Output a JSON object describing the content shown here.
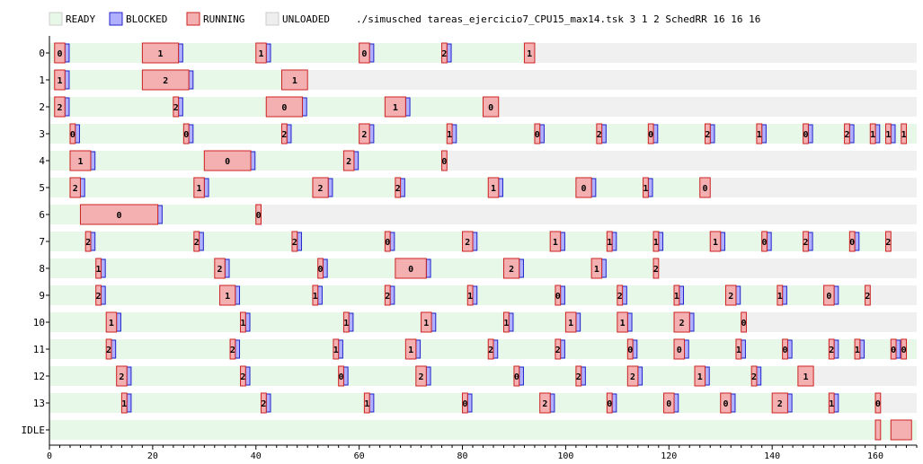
{
  "chart_data": {
    "type": "gantt",
    "title": "./simusched tareas_ejercicio7_CPU15_max14.tsk 3 1 2 SchedRR 16 16 16",
    "legend": [
      {
        "name": "READY",
        "color": "#e8f8e8"
      },
      {
        "name": "BLOCKED",
        "color": "#b0b0ff"
      },
      {
        "name": "RUNNING",
        "color": "#f4b0b0"
      },
      {
        "name": "UNLOADED",
        "color": "#eeeeee"
      }
    ],
    "colors": {
      "ready": "#e8f8e8",
      "ready_border": "#ffffff",
      "blocked": "#b0b0ff",
      "blocked_border": "#2222cc",
      "running": "#f4b0b0",
      "running_border": "#cc2222",
      "unloaded": "#f0f0f0"
    },
    "xlim": [
      0,
      168
    ],
    "x_ticks": [
      0,
      20,
      40,
      60,
      80,
      100,
      120,
      140,
      160
    ],
    "rows": [
      {
        "label": "0",
        "end": 168,
        "runs": [
          [
            1,
            3,
            "0"
          ],
          [
            18,
            25,
            "1"
          ],
          [
            40,
            42,
            "1"
          ],
          [
            60,
            62,
            "0"
          ],
          [
            76,
            77,
            "2"
          ],
          [
            92,
            94,
            "1"
          ]
        ],
        "blocks": [
          [
            3,
            4
          ],
          [
            25,
            26
          ],
          [
            42,
            43
          ],
          [
            62,
            63
          ],
          [
            77,
            78
          ]
        ],
        "unloaded_from": 94
      },
      {
        "label": "1",
        "end": 168,
        "runs": [
          [
            1,
            3,
            "1"
          ],
          [
            18,
            27,
            "2"
          ],
          [
            45,
            50,
            "1"
          ]
        ],
        "blocks": [
          [
            3,
            4
          ],
          [
            27,
            28
          ]
        ],
        "unloaded_from": 50
      },
      {
        "label": "2",
        "end": 168,
        "runs": [
          [
            1,
            3,
            "2"
          ],
          [
            24,
            25,
            "2"
          ],
          [
            42,
            49,
            "0"
          ],
          [
            65,
            69,
            "1"
          ],
          [
            84,
            87,
            "0"
          ]
        ],
        "blocks": [
          [
            3,
            4
          ],
          [
            25,
            26
          ],
          [
            49,
            50
          ],
          [
            69,
            70
          ]
        ],
        "unloaded_from": 87
      },
      {
        "label": "3",
        "end": 168,
        "runs": [
          [
            4,
            5,
            "0"
          ],
          [
            26,
            27,
            "0"
          ],
          [
            45,
            46,
            "2"
          ],
          [
            60,
            62,
            "2"
          ],
          [
            77,
            78,
            "1"
          ],
          [
            94,
            95,
            "0"
          ],
          [
            106,
            107,
            "2"
          ],
          [
            116,
            117,
            "0"
          ],
          [
            127,
            128,
            "2"
          ],
          [
            137,
            138,
            "1"
          ],
          [
            146,
            147,
            "0"
          ],
          [
            154,
            155,
            "2"
          ],
          [
            159,
            160,
            "1"
          ],
          [
            162,
            163,
            "1"
          ],
          [
            165,
            166,
            "1"
          ]
        ],
        "blocks": [
          [
            5,
            6
          ],
          [
            27,
            28
          ],
          [
            46,
            47
          ],
          [
            62,
            63
          ],
          [
            78,
            79
          ],
          [
            95,
            96
          ],
          [
            107,
            108
          ],
          [
            117,
            118
          ],
          [
            128,
            129
          ],
          [
            138,
            139
          ],
          [
            147,
            148
          ],
          [
            155,
            156
          ],
          [
            160,
            161
          ],
          [
            163,
            164
          ]
        ],
        "unloaded_from": null
      },
      {
        "label": "4",
        "end": 168,
        "runs": [
          [
            4,
            8,
            "1"
          ],
          [
            30,
            39,
            "0"
          ],
          [
            57,
            59,
            "2"
          ],
          [
            76,
            77,
            "0"
          ]
        ],
        "blocks": [
          [
            8,
            9
          ],
          [
            39,
            40
          ],
          [
            59,
            60
          ]
        ],
        "unloaded_from": 77
      },
      {
        "label": "5",
        "end": 168,
        "runs": [
          [
            4,
            6,
            "2"
          ],
          [
            28,
            30,
            "1"
          ],
          [
            51,
            54,
            "2"
          ],
          [
            67,
            68,
            "2"
          ],
          [
            85,
            87,
            "1"
          ],
          [
            102,
            105,
            "0"
          ],
          [
            115,
            116,
            "1"
          ],
          [
            126,
            128,
            "0"
          ]
        ],
        "blocks": [
          [
            6,
            7
          ],
          [
            30,
            31
          ],
          [
            54,
            55
          ],
          [
            68,
            69
          ],
          [
            87,
            88
          ],
          [
            105,
            106
          ],
          [
            116,
            117
          ]
        ],
        "unloaded_from": 128
      },
      {
        "label": "6",
        "end": 168,
        "runs": [
          [
            6,
            21,
            "0"
          ],
          [
            40,
            41,
            "0"
          ]
        ],
        "blocks": [
          [
            21,
            22
          ]
        ],
        "unloaded_from": 41
      },
      {
        "label": "7",
        "end": 168,
        "runs": [
          [
            7,
            8,
            "2"
          ],
          [
            28,
            29,
            "2"
          ],
          [
            47,
            48,
            "2"
          ],
          [
            65,
            66,
            "0"
          ],
          [
            80,
            82,
            "2"
          ],
          [
            97,
            99,
            "1"
          ],
          [
            108,
            109,
            "1"
          ],
          [
            117,
            118,
            "1"
          ],
          [
            128,
            130,
            "1"
          ],
          [
            138,
            139,
            "0"
          ],
          [
            146,
            147,
            "2"
          ],
          [
            155,
            156,
            "0"
          ],
          [
            162,
            163,
            "2"
          ]
        ],
        "blocks": [
          [
            8,
            9
          ],
          [
            29,
            30
          ],
          [
            48,
            49
          ],
          [
            66,
            67
          ],
          [
            82,
            83
          ],
          [
            99,
            100
          ],
          [
            109,
            110
          ],
          [
            118,
            119
          ],
          [
            130,
            131
          ],
          [
            139,
            140
          ],
          [
            147,
            148
          ],
          [
            156,
            157
          ]
        ],
        "unloaded_from": 163
      },
      {
        "label": "8",
        "end": 168,
        "runs": [
          [
            9,
            10,
            "1"
          ],
          [
            32,
            34,
            "2"
          ],
          [
            52,
            53,
            "0"
          ],
          [
            67,
            73,
            "0"
          ],
          [
            88,
            91,
            "2"
          ],
          [
            105,
            107,
            "1"
          ],
          [
            117,
            118,
            "2"
          ]
        ],
        "blocks": [
          [
            10,
            11
          ],
          [
            34,
            35
          ],
          [
            53,
            54
          ],
          [
            73,
            74
          ],
          [
            91,
            92
          ],
          [
            107,
            108
          ]
        ],
        "unloaded_from": 118
      },
      {
        "label": "9",
        "end": 168,
        "runs": [
          [
            9,
            10,
            "2"
          ],
          [
            33,
            36,
            "1"
          ],
          [
            51,
            52,
            "1"
          ],
          [
            65,
            66,
            "2"
          ],
          [
            81,
            82,
            "1"
          ],
          [
            98,
            99,
            "0"
          ],
          [
            110,
            111,
            "2"
          ],
          [
            121,
            122,
            "1"
          ],
          [
            131,
            133,
            "2"
          ],
          [
            141,
            142,
            "1"
          ],
          [
            150,
            152,
            "0"
          ],
          [
            158,
            159,
            "2"
          ]
        ],
        "blocks": [
          [
            10,
            11
          ],
          [
            36,
            37
          ],
          [
            52,
            53
          ],
          [
            66,
            67
          ],
          [
            82,
            83
          ],
          [
            99,
            100
          ],
          [
            111,
            112
          ],
          [
            122,
            123
          ],
          [
            133,
            134
          ],
          [
            142,
            143
          ],
          [
            152,
            153
          ]
        ],
        "unloaded_from": 159
      },
      {
        "label": "10",
        "end": 168,
        "runs": [
          [
            11,
            13,
            "1"
          ],
          [
            37,
            38,
            "1"
          ],
          [
            57,
            58,
            "1"
          ],
          [
            72,
            74,
            "1"
          ],
          [
            88,
            89,
            "1"
          ],
          [
            100,
            102,
            "1"
          ],
          [
            110,
            112,
            "1"
          ],
          [
            121,
            124,
            "2"
          ],
          [
            134,
            135,
            "0"
          ]
        ],
        "blocks": [
          [
            13,
            14
          ],
          [
            38,
            39
          ],
          [
            58,
            59
          ],
          [
            74,
            75
          ],
          [
            89,
            90
          ],
          [
            102,
            103
          ],
          [
            112,
            113
          ],
          [
            124,
            125
          ]
        ],
        "unloaded_from": 135
      },
      {
        "label": "11",
        "end": 168,
        "runs": [
          [
            11,
            12,
            "2"
          ],
          [
            35,
            36,
            "2"
          ],
          [
            55,
            56,
            "1"
          ],
          [
            69,
            71,
            "1"
          ],
          [
            85,
            86,
            "2"
          ],
          [
            98,
            99,
            "2"
          ],
          [
            112,
            113,
            "0"
          ],
          [
            121,
            123,
            "0"
          ],
          [
            133,
            134,
            "1"
          ],
          [
            142,
            143,
            "0"
          ],
          [
            151,
            152,
            "2"
          ],
          [
            156,
            157,
            "1"
          ],
          [
            163,
            164,
            "0"
          ],
          [
            165,
            166,
            "0"
          ]
        ],
        "blocks": [
          [
            12,
            13
          ],
          [
            36,
            37
          ],
          [
            56,
            57
          ],
          [
            71,
            72
          ],
          [
            86,
            87
          ],
          [
            99,
            100
          ],
          [
            113,
            114
          ],
          [
            123,
            124
          ],
          [
            134,
            135
          ],
          [
            143,
            144
          ],
          [
            152,
            153
          ],
          [
            157,
            158
          ],
          [
            164,
            165
          ]
        ],
        "unloaded_from": null
      },
      {
        "label": "12",
        "end": 168,
        "runs": [
          [
            13,
            15,
            "2"
          ],
          [
            37,
            38,
            "2"
          ],
          [
            56,
            57,
            "0"
          ],
          [
            71,
            73,
            "2"
          ],
          [
            90,
            91,
            "0"
          ],
          [
            102,
            103,
            "2"
          ],
          [
            112,
            114,
            "2"
          ],
          [
            125,
            127,
            "1"
          ],
          [
            136,
            137,
            "2"
          ],
          [
            145,
            148,
            "1"
          ]
        ],
        "blocks": [
          [
            15,
            16
          ],
          [
            38,
            39
          ],
          [
            57,
            58
          ],
          [
            73,
            74
          ],
          [
            91,
            92
          ],
          [
            103,
            104
          ],
          [
            114,
            115
          ],
          [
            127,
            128
          ],
          [
            137,
            138
          ]
        ],
        "unloaded_from": 148
      },
      {
        "label": "13",
        "end": 168,
        "runs": [
          [
            14,
            15,
            "1"
          ],
          [
            41,
            42,
            "2"
          ],
          [
            61,
            62,
            "1"
          ],
          [
            80,
            81,
            "0"
          ],
          [
            95,
            97,
            "2"
          ],
          [
            108,
            109,
            "0"
          ],
          [
            119,
            121,
            "0"
          ],
          [
            130,
            132,
            "0"
          ],
          [
            140,
            143,
            "2"
          ],
          [
            151,
            152,
            "1"
          ],
          [
            160,
            161,
            "0"
          ]
        ],
        "blocks": [
          [
            15,
            16
          ],
          [
            42,
            43
          ],
          [
            62,
            63
          ],
          [
            81,
            82
          ],
          [
            97,
            98
          ],
          [
            109,
            110
          ],
          [
            121,
            122
          ],
          [
            132,
            133
          ],
          [
            143,
            144
          ],
          [
            152,
            153
          ]
        ],
        "unloaded_from": 161
      },
      {
        "label": "IDLE",
        "end": 168,
        "runs": [
          [
            160,
            161,
            ""
          ],
          [
            163,
            167,
            ""
          ]
        ],
        "blocks": [],
        "unloaded_from": null
      }
    ]
  }
}
